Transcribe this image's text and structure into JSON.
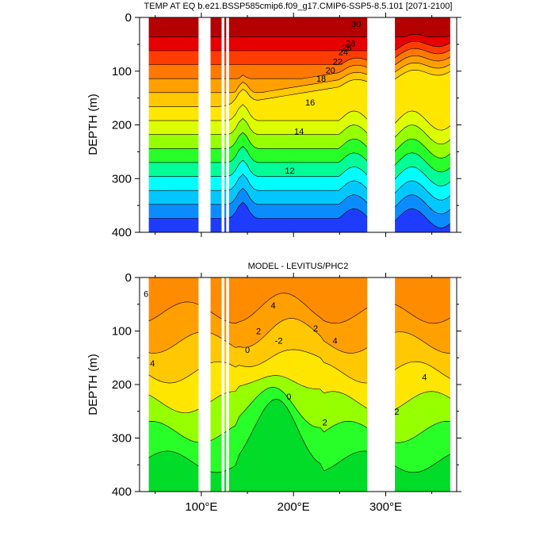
{
  "chart_data": [
    {
      "type": "contour",
      "title": "TEMP AT EQ b.e21.BSSP585cmip6.f09_g17.CMIP6-SSP5-8.5.101 [2071-2100]",
      "ylabel": "DEPTH (m)",
      "xlabel": "",
      "xlim": [
        33,
        377
      ],
      "ylim": [
        400,
        0
      ],
      "yticks": [
        "0",
        "100",
        "200",
        "300",
        "400"
      ],
      "xticks": [
        100,
        200,
        300
      ],
      "contour_labels": [
        {
          "text": "30",
          "x": 268,
          "y": 12
        },
        {
          "text": "26",
          "x": 258,
          "y": 56
        },
        {
          "text": "28",
          "x": 262,
          "y": 48
        },
        {
          "text": "24",
          "x": 254,
          "y": 64
        },
        {
          "text": "22",
          "x": 248,
          "y": 82
        },
        {
          "text": "20",
          "x": 240,
          "y": 98
        },
        {
          "text": "18",
          "x": 230,
          "y": 114
        },
        {
          "text": "16",
          "x": 218,
          "y": 158
        },
        {
          "text": "14",
          "x": 206,
          "y": 212
        },
        {
          "text": "12",
          "x": 196,
          "y": 285
        }
      ],
      "gaps": [
        [
          97,
          110
        ],
        [
          122,
          125
        ],
        [
          127,
          130
        ],
        [
          280,
          310
        ],
        [
          370,
          377
        ]
      ],
      "colors": [
        "#1e3cff",
        "#0a8cff",
        "#00c8ff",
        "#00ffff",
        "#00ff96",
        "#28ff28",
        "#96ff00",
        "#dcff00",
        "#ffe600",
        "#ffc800",
        "#ffa000",
        "#ff7800",
        "#ff3c00",
        "#e60000",
        "#b40000"
      ]
    },
    {
      "type": "contour",
      "title": "MODEL - LEVITUS/PHC2",
      "ylabel": "DEPTH (m)",
      "xlabel": "",
      "xlim": [
        33,
        377
      ],
      "ylim": [
        400,
        0
      ],
      "yticks": [
        "0",
        "100",
        "200",
        "300",
        "400"
      ],
      "xticks": [
        100,
        200,
        300
      ],
      "xticklabels": [
        "100°E",
        "200°E",
        "300°E"
      ],
      "contour_labels": [
        {
          "text": "6",
          "x": 40,
          "y": 30
        },
        {
          "text": "4",
          "x": 47,
          "y": 160
        },
        {
          "text": "4",
          "x": 178,
          "y": 52
        },
        {
          "text": "2",
          "x": 162,
          "y": 100
        },
        {
          "text": "-2",
          "x": 184,
          "y": 118
        },
        {
          "text": "0",
          "x": 150,
          "y": 135
        },
        {
          "text": "0",
          "x": 195,
          "y": 222
        },
        {
          "text": "2",
          "x": 234,
          "y": 270
        },
        {
          "text": "4",
          "x": 245,
          "y": 118
        },
        {
          "text": "2",
          "x": 224,
          "y": 95
        },
        {
          "text": "4",
          "x": 342,
          "y": 186
        },
        {
          "text": "2",
          "x": 312,
          "y": 250
        }
      ],
      "gaps": [
        [
          97,
          110
        ],
        [
          122,
          125
        ],
        [
          127,
          130
        ],
        [
          280,
          310
        ],
        [
          370,
          377
        ]
      ],
      "colors": [
        "#00dc28",
        "#28ff28",
        "#96ff00",
        "#ffe600",
        "#ffc800",
        "#ffa000",
        "#ff8c00"
      ]
    }
  ]
}
